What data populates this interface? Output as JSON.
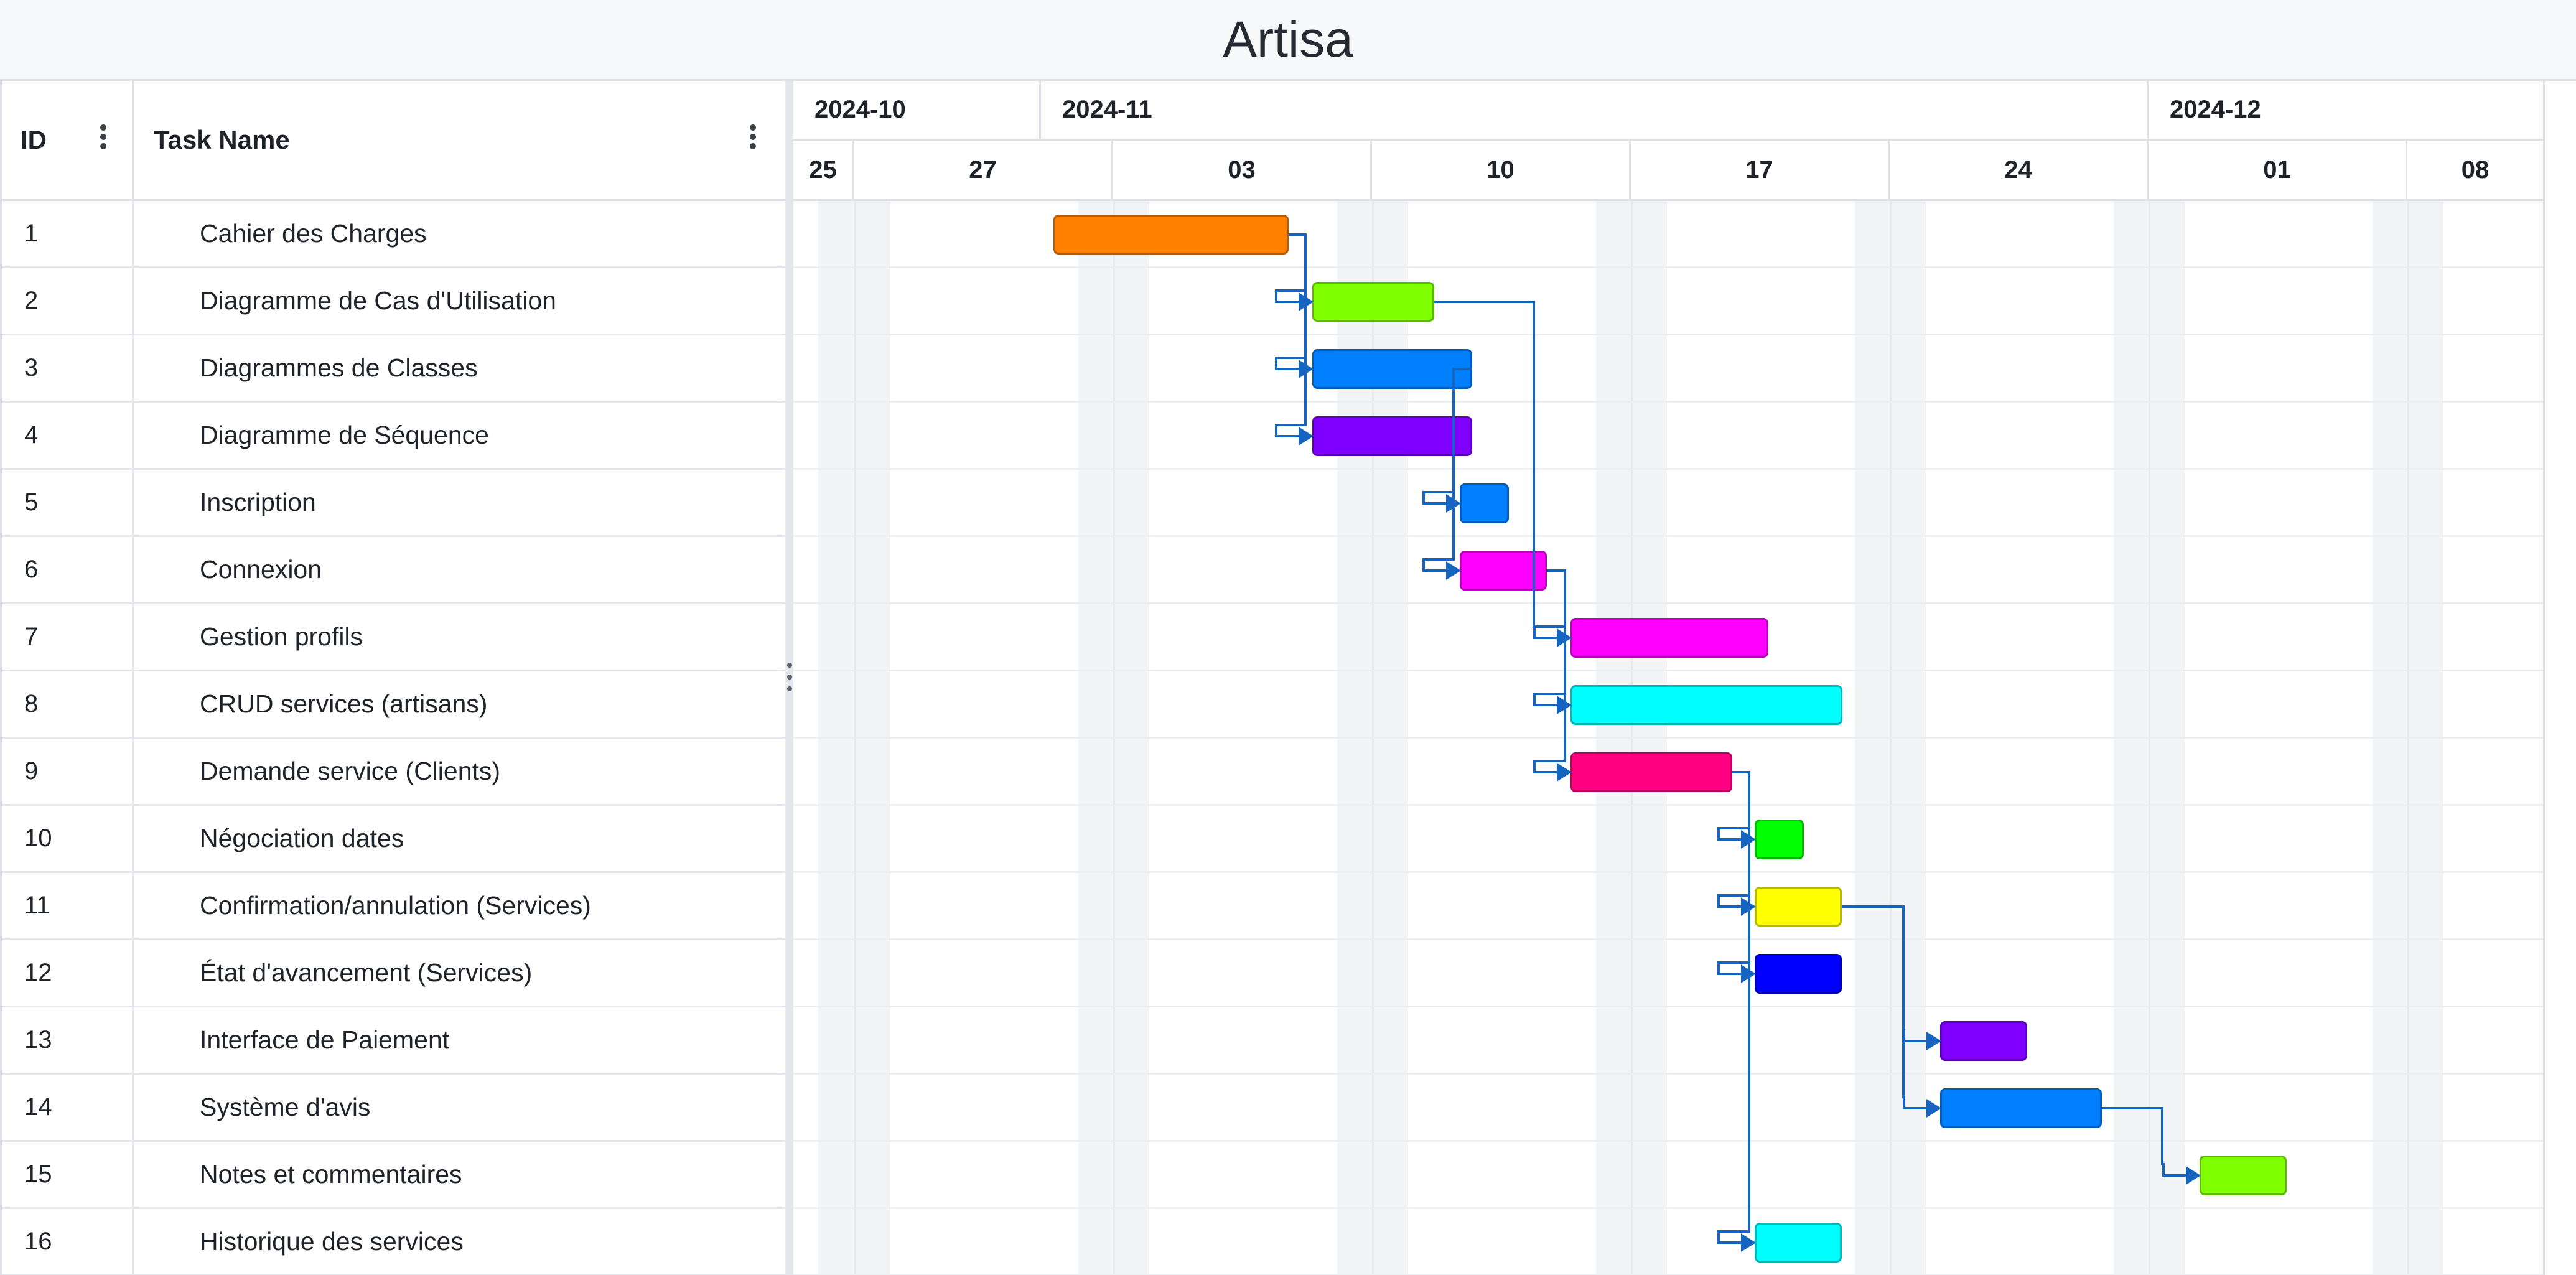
{
  "project_title": "Artisa",
  "grid_header": {
    "id_label": "ID",
    "name_label": "Task Name"
  },
  "timeline": {
    "months": [
      "2024-10",
      "2024-11",
      "2024-12"
    ],
    "weeks": [
      "25",
      "27",
      "03",
      "10",
      "17",
      "24",
      "01",
      "08"
    ]
  },
  "tasks": [
    {
      "id": "1",
      "name": "Cahier des Charges",
      "color": "#ff8000"
    },
    {
      "id": "2",
      "name": "Diagramme de Cas d'Utilisation",
      "color": "#80ff00"
    },
    {
      "id": "3",
      "name": "Diagrammes de Classes",
      "color": "#0080ff"
    },
    {
      "id": "4",
      "name": "Diagramme de Séquence",
      "color": "#8000ff"
    },
    {
      "id": "5",
      "name": "Inscription",
      "color": "#0080ff"
    },
    {
      "id": "6",
      "name": "Connexion",
      "color": "#ff00ff"
    },
    {
      "id": "7",
      "name": "Gestion profils",
      "color": "#ff00ff"
    },
    {
      "id": "8",
      "name": "CRUD services (artisans)",
      "color": "#00ffff"
    },
    {
      "id": "9",
      "name": "Demande service (Clients)",
      "color": "#ff0080"
    },
    {
      "id": "10",
      "name": "Négociation dates",
      "color": "#00ff00"
    },
    {
      "id": "11",
      "name": "Confirmation/annulation (Services)",
      "color": "#ffff00"
    },
    {
      "id": "12",
      "name": "État d'avancement (Services)",
      "color": "#0000ff"
    },
    {
      "id": "13",
      "name": "Interface de Paiement",
      "color": "#8000ff"
    },
    {
      "id": "14",
      "name": "Système d'avis",
      "color": "#0080ff"
    },
    {
      "id": "15",
      "name": "Notes et commentaires",
      "color": "#80ff00"
    },
    {
      "id": "16",
      "name": "Historique des services",
      "color": "#00ffff"
    }
  ],
  "dependency_color": "#1565c0"
}
